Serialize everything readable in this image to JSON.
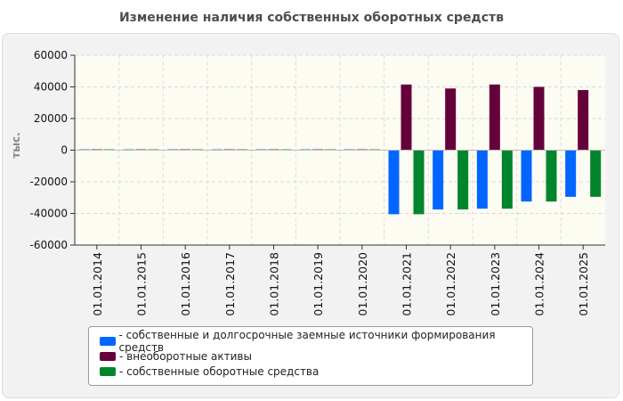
{
  "chart_data": {
    "type": "bar",
    "title": "Изменение наличия собственных оборотных средств",
    "ylabel": "тыс.",
    "xlabel": "",
    "ylim": [
      -60000,
      60000
    ],
    "yticks": [
      60000,
      40000,
      20000,
      0,
      -20000,
      -40000,
      -60000
    ],
    "grid": true,
    "legend_position": "bottom",
    "categories": [
      "01.01.2014",
      "01.01.2015",
      "01.01.2016",
      "01.01.2017",
      "01.01.2018",
      "01.01.2019",
      "01.01.2020",
      "01.01.2021",
      "01.01.2022",
      "01.01.2023",
      "01.01.2024",
      "01.01.2025"
    ],
    "series": [
      {
        "name": "собственные и долгосрочные заемные источники формирования средств",
        "color": "#0066ff",
        "values": [
          500,
          500,
          500,
          500,
          500,
          500,
          500,
          -40500,
          -37500,
          -37000,
          -32500,
          -29500
        ]
      },
      {
        "name": "внеоборотные активы",
        "color": "#66003a",
        "values": [
          500,
          500,
          500,
          500,
          500,
          500,
          500,
          41500,
          39000,
          41500,
          40000,
          38000
        ]
      },
      {
        "name": "собственные оборотные средства",
        "color": "#00852c",
        "values": [
          500,
          500,
          500,
          500,
          500,
          500,
          500,
          -40500,
          -37500,
          -37000,
          -32500,
          -29500
        ]
      }
    ]
  }
}
